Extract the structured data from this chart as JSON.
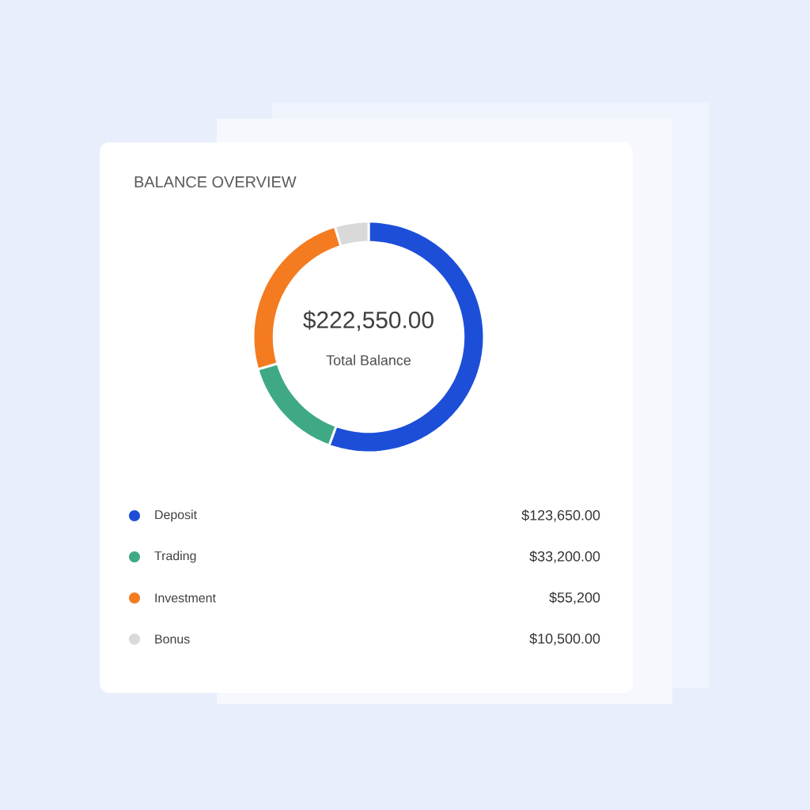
{
  "chart_data": {
    "type": "donut",
    "title": "BALANCE OVERVIEW",
    "categories": [
      "Deposit",
      "Trading",
      "Investment",
      "Bonus"
    ],
    "values": [
      123650,
      33200,
      55200,
      10500
    ],
    "colors": [
      "#1c4ed8",
      "#3fa985",
      "#f47b20",
      "#d9d9d9"
    ],
    "value_labels": [
      "$123,650.00",
      "$33,200.00",
      "$55,200",
      "$10,500.00"
    ],
    "annotations": [
      "$222,550.00",
      "Total Balance"
    ],
    "legend": "bottom"
  }
}
